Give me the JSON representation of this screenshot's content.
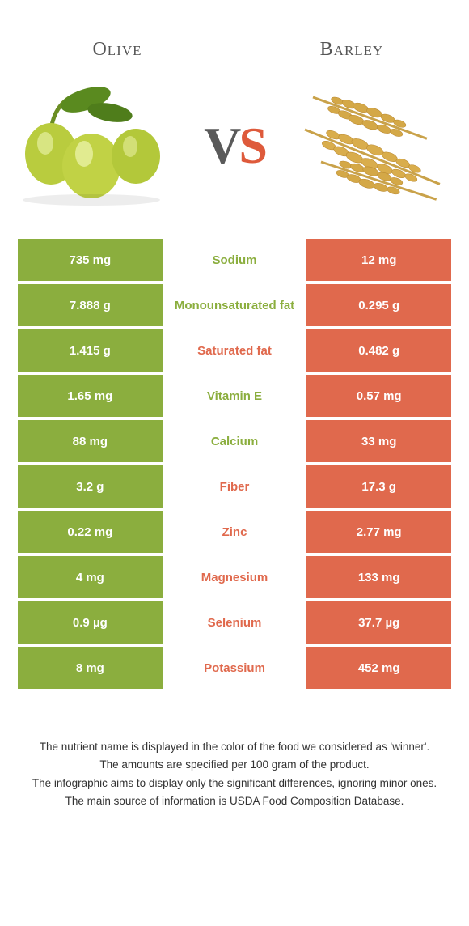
{
  "colors": {
    "left": "#8bae3e",
    "right": "#e0694d",
    "left_text": "#8bae3e",
    "right_text": "#e0694d",
    "title": "#5a5a5a"
  },
  "foods": {
    "left": "Olive",
    "right": "Barley"
  },
  "vs": {
    "v": "V",
    "s": "S"
  },
  "rows": [
    {
      "left": "735 mg",
      "label": "Sodium",
      "right": "12 mg",
      "winner": "left"
    },
    {
      "left": "7.888 g",
      "label": "Monounsaturated fat",
      "right": "0.295 g",
      "winner": "left"
    },
    {
      "left": "1.415 g",
      "label": "Saturated fat",
      "right": "0.482 g",
      "winner": "right"
    },
    {
      "left": "1.65 mg",
      "label": "Vitamin E",
      "right": "0.57 mg",
      "winner": "left"
    },
    {
      "left": "88 mg",
      "label": "Calcium",
      "right": "33 mg",
      "winner": "left"
    },
    {
      "left": "3.2 g",
      "label": "Fiber",
      "right": "17.3 g",
      "winner": "right"
    },
    {
      "left": "0.22 mg",
      "label": "Zinc",
      "right": "2.77 mg",
      "winner": "right"
    },
    {
      "left": "4 mg",
      "label": "Magnesium",
      "right": "133 mg",
      "winner": "right"
    },
    {
      "left": "0.9 µg",
      "label": "Selenium",
      "right": "37.7 µg",
      "winner": "right"
    },
    {
      "left": "8 mg",
      "label": "Potassium",
      "right": "452 mg",
      "winner": "right"
    }
  ],
  "footer": [
    "The nutrient name is displayed in the color of the food we considered as 'winner'.",
    "The amounts are specified per 100 gram of the product.",
    "The infographic aims to display only the significant differences, ignoring minor ones.",
    "The main source of information is USDA Food Composition Database."
  ]
}
